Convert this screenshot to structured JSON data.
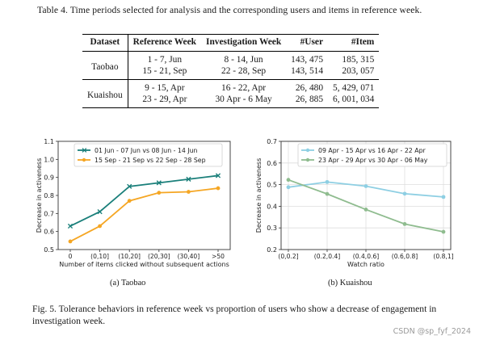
{
  "table": {
    "caption": "Table 4.  Time periods selected for analysis and the corresponding users and items in reference week.",
    "headers": [
      "Dataset",
      "Reference Week",
      "Investigation Week",
      "#User",
      "#Item"
    ],
    "groups": [
      {
        "dataset": "Taobao",
        "rows": [
          {
            "ref": "1 - 7, Jun",
            "inv": "8 - 14, Jun",
            "user": "143, 475",
            "item": "185, 315"
          },
          {
            "ref": "15 - 21, Sep",
            "inv": "22 - 28, Sep",
            "user": "143, 514",
            "item": "203, 057"
          }
        ]
      },
      {
        "dataset": "Kuaishou",
        "rows": [
          {
            "ref": "9 - 15, Apr",
            "inv": "16 - 22, Apr",
            "user": "26, 480",
            "item": "5, 429, 071"
          },
          {
            "ref": "23 - 29, Apr",
            "inv": "30 Apr - 6 May",
            "user": "26, 885",
            "item": "6, 001, 034"
          }
        ]
      }
    ]
  },
  "chart_data": [
    {
      "type": "line",
      "x": [
        "0",
        "(0,10]",
        "(10,20]",
        "(20,30]",
        "(30,40]",
        ">50"
      ],
      "series": [
        {
          "name": "01 Jun - 07 Jun vs 08 Jun - 14 Jun",
          "values": [
            0.63,
            0.71,
            0.85,
            0.87,
            0.89,
            0.91
          ],
          "color": "#1a7f7a",
          "marker": "x"
        },
        {
          "name": "15 Sep - 21 Sep vs 22 Sep - 28 Sep",
          "values": [
            0.545,
            0.63,
            0.77,
            0.815,
            0.82,
            0.84
          ],
          "color": "#f5a623",
          "marker": "o"
        }
      ],
      "xlabel": "Number of items clicked without subsequent actions",
      "ylabel": "Decrease in activeness",
      "ylim": [
        0.5,
        1.1
      ],
      "yticks": [
        "0.5",
        "0.6",
        "0.7",
        "0.8",
        "0.9",
        "1.0",
        "1.1"
      ],
      "legend": "top-left",
      "grid": false
    },
    {
      "type": "line",
      "x": [
        "(0,0.2]",
        "(0.2,0.4]",
        "(0.4,0.6]",
        "(0.6,0.8]",
        "(0.8,1]"
      ],
      "series": [
        {
          "name": "09 Apr - 15 Apr vs 16 Apr - 22 Apr",
          "values": [
            0.488,
            0.512,
            0.493,
            0.458,
            0.443
          ],
          "color": "#8ecfe3",
          "marker": "o"
        },
        {
          "name": "23 Apr - 29 Apr vs 30 Apr - 06 May",
          "values": [
            0.522,
            0.457,
            0.385,
            0.318,
            0.282
          ],
          "color": "#8fbc8f",
          "marker": "o"
        }
      ],
      "xlabel": "Watch ratio",
      "ylabel": "Decrease in activeness",
      "ylim": [
        0.2,
        0.7
      ],
      "yticks": [
        "0.2",
        "0.3",
        "0.4",
        "0.5",
        "0.6",
        "0.7"
      ],
      "legend": "top-right",
      "grid": true
    }
  ],
  "subcaptions": [
    "(a) Taobao",
    "(b) Kuaishou"
  ],
  "figure_caption": "Fig. 5.  Tolerance behaviors in reference week vs proportion of users who show a decrease of engagement in investigation week.",
  "watermark": "CSDN @sp_fyf_2024"
}
